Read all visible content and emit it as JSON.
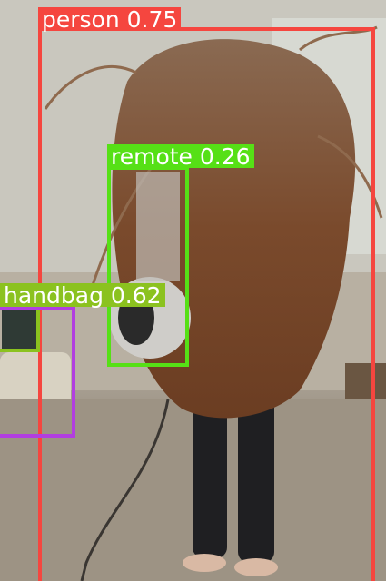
{
  "detections": {
    "person": {
      "label": "person 0.75",
      "color": "#f5463f"
    },
    "remote": {
      "label": "remote 0.26",
      "color": "#56e016"
    },
    "handbag": {
      "label": "handbag 0.62",
      "color": "#8bc21f",
      "box_colors": [
        "#8bc21f",
        "#b23ee0"
      ]
    }
  }
}
